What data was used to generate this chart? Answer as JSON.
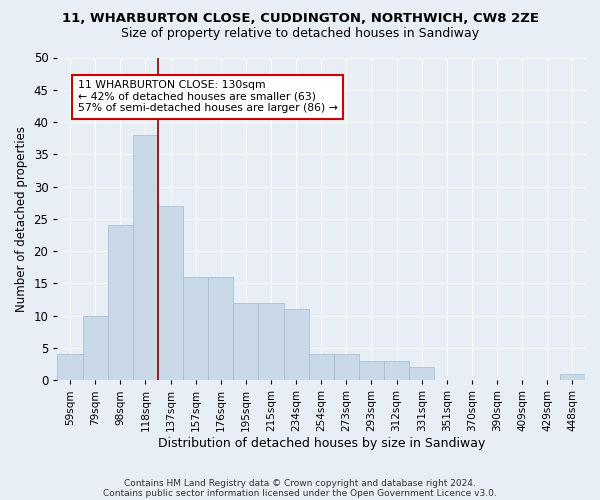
{
  "title": "11, WHARBURTON CLOSE, CUDDINGTON, NORTHWICH, CW8 2ZE",
  "subtitle": "Size of property relative to detached houses in Sandiway",
  "xlabel": "Distribution of detached houses by size in Sandiway",
  "ylabel": "Number of detached properties",
  "bar_color": "#c9d9e8",
  "bar_edgecolor": "#a8c0d4",
  "bar_values": [
    4,
    10,
    24,
    38,
    27,
    16,
    16,
    12,
    12,
    11,
    4,
    4,
    3,
    3,
    2,
    0,
    0,
    0,
    0,
    0,
    1
  ],
  "bar_labels": [
    "59sqm",
    "79sqm",
    "98sqm",
    "118sqm",
    "137sqm",
    "157sqm",
    "176sqm",
    "195sqm",
    "215sqm",
    "234sqm",
    "254sqm",
    "273sqm",
    "293sqm",
    "312sqm",
    "331sqm",
    "351sqm",
    "370sqm",
    "390sqm",
    "409sqm",
    "429sqm",
    "448sqm"
  ],
  "vline_x": 3.5,
  "vline_color": "#8b0000",
  "annotation_text": "11 WHARBURTON CLOSE: 130sqm\n← 42% of detached houses are smaller (63)\n57% of semi-detached houses are larger (86) →",
  "annotation_box_facecolor": "#ffffff",
  "annotation_box_edgecolor": "#cc0000",
  "ylim": [
    0,
    50
  ],
  "yticks": [
    0,
    5,
    10,
    15,
    20,
    25,
    30,
    35,
    40,
    45,
    50
  ],
  "footer1": "Contains HM Land Registry data © Crown copyright and database right 2024.",
  "footer2": "Contains public sector information licensed under the Open Government Licence v3.0.",
  "background_color": "#e8eef5",
  "grid_color": "#ffffff",
  "figsize": [
    6.0,
    5.0
  ],
  "dpi": 100
}
